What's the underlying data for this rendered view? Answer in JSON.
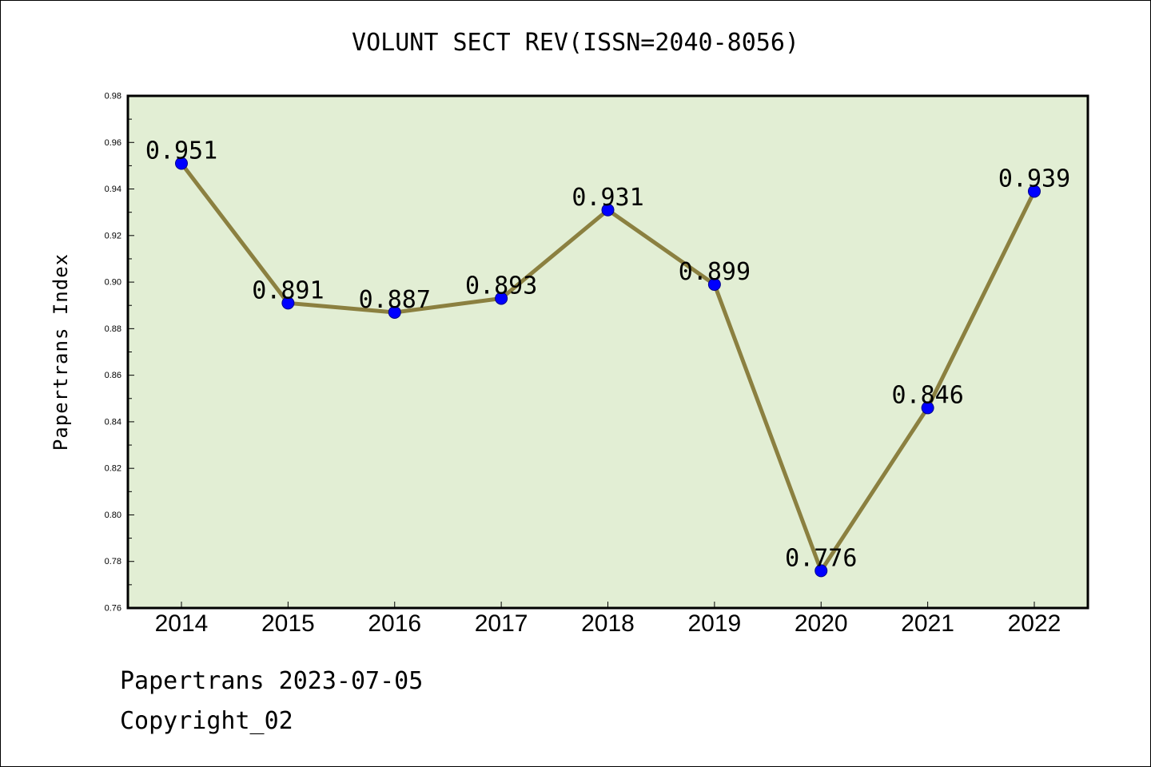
{
  "chart_data": {
    "type": "line",
    "title": "VOLUNT SECT REV(ISSN=2040-8056)",
    "xlabel": "",
    "ylabel": "Papertrans Index",
    "categories": [
      "2014",
      "2015",
      "2016",
      "2017",
      "2018",
      "2019",
      "2020",
      "2021",
      "2022"
    ],
    "series": [
      {
        "values": [
          0.951,
          0.891,
          0.887,
          0.893,
          0.931,
          0.899,
          0.776,
          0.846,
          0.939
        ],
        "labels": [
          "0.951",
          "0.891",
          "0.887",
          "0.893",
          "0.931",
          "0.899",
          "0.776",
          "0.846",
          "0.939"
        ]
      }
    ],
    "ylim": [
      0.76,
      0.98
    ],
    "yticks": [
      "0.76",
      "0.78",
      "0.80",
      "0.82",
      "0.84",
      "0.86",
      "0.88",
      "0.90",
      "0.92",
      "0.94",
      "0.96",
      "0.98"
    ],
    "grid": false,
    "legend": "none",
    "colors": {
      "line": "#8B8040",
      "marker": "#0000FF",
      "plot_background": "#E2EED4"
    }
  },
  "footer": {
    "source": "Papertrans 2023-07-05",
    "copyright": "Copyright_02"
  }
}
